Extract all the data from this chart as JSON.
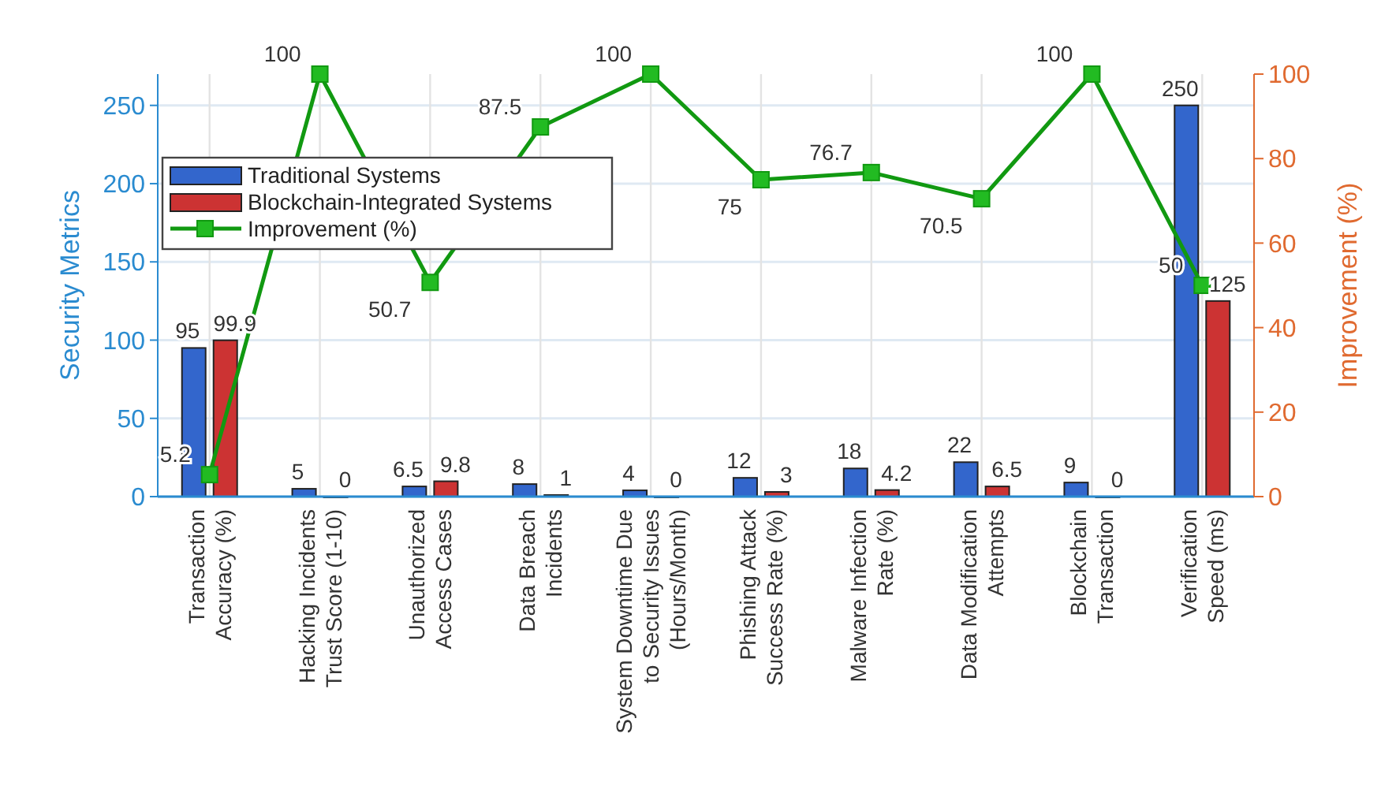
{
  "chart_data": {
    "type": "bar",
    "ylabel": "Security Metrics",
    "y2label": "Improvement (%)",
    "categories": [
      "Transaction\nAccuracy (%)",
      "Hacking Incidents\nTrust Score (1-10)",
      "Unauthorized\nAccess Cases",
      "Data Breach\nIncidents",
      "System Downtime Due\nto Security Issues\n(Hours/Month)",
      "Phishing Attack\nSuccess Rate (%)",
      "Malware Infection\nRate (%)",
      "Data Modification\nAttempts",
      "Blockchain\nTransaction",
      "Verification\nSpeed (ms)"
    ],
    "series": [
      {
        "name": "Traditional Systems",
        "color": "#3366cc",
        "values": [
          95,
          5,
          6.5,
          8,
          4,
          12,
          18,
          22,
          9,
          250
        ]
      },
      {
        "name": "Blockchain-Integrated Systems",
        "color": "#cc3333",
        "values": [
          99.9,
          0,
          9.8,
          1,
          0,
          3,
          4.2,
          6.5,
          0,
          125
        ]
      },
      {
        "name": "Improvement (%)",
        "type": "line",
        "axis": "y2",
        "color": "#119911",
        "marker": "square",
        "values": [
          5.2,
          100,
          50.7,
          87.5,
          100,
          75,
          76.7,
          70.5,
          100,
          50
        ]
      }
    ],
    "ylim": [
      0,
      270
    ],
    "yticks": [
      0,
      50,
      100,
      150,
      200,
      250
    ],
    "y2lim": [
      0,
      100
    ],
    "y2ticks": [
      0,
      20,
      40,
      60,
      80,
      100
    ],
    "data_labels": true,
    "grid": true,
    "legend": "top left"
  }
}
